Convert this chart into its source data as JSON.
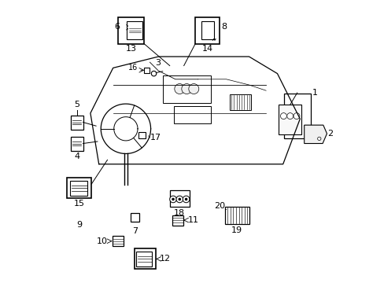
{
  "bg_color": "#ffffff",
  "fig_width": 4.89,
  "fig_height": 3.6,
  "dpi": 100,
  "line_color": "#000000",
  "text_color": "#000000",
  "font_size": 8
}
